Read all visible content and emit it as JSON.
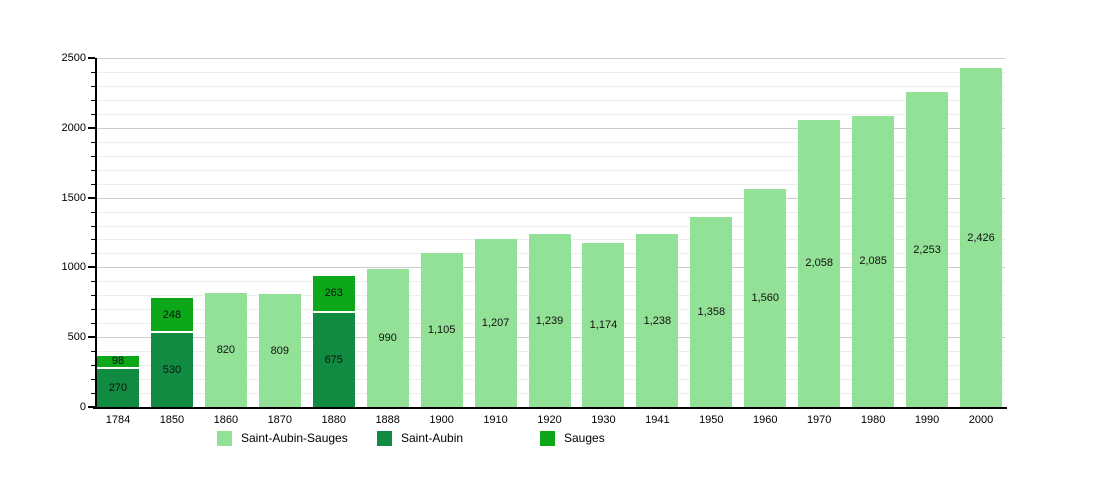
{
  "chart_data": {
    "type": "bar",
    "stacked": true,
    "title": "",
    "xlabel": "",
    "ylabel": "",
    "ylim": [
      0,
      2500
    ],
    "y_major_ticks": [
      0,
      500,
      1000,
      1500,
      2000,
      2500
    ],
    "y_minor_step": 100,
    "grid": true,
    "legend_position": "bottom",
    "series_colors": {
      "Saint-Aubin-Sauges": "#93E097",
      "Saint-Aubin": "#118A42",
      "Sauges": "#0CA81A"
    },
    "categories": [
      "1784",
      "1850",
      "1860",
      "1870",
      "1880",
      "1888",
      "1900",
      "1910",
      "1920",
      "1930",
      "1941",
      "1950",
      "1960",
      "1970",
      "1980",
      "1990",
      "2000"
    ],
    "bars": [
      {
        "category": "1784",
        "segments": [
          {
            "series": "Saint-Aubin",
            "value": 270,
            "label": "270"
          },
          {
            "series": "Sauges",
            "value": 98,
            "label": "98"
          }
        ]
      },
      {
        "category": "1850",
        "segments": [
          {
            "series": "Saint-Aubin",
            "value": 530,
            "label": "530"
          },
          {
            "series": "Sauges",
            "value": 248,
            "label": "248"
          }
        ]
      },
      {
        "category": "1860",
        "segments": [
          {
            "series": "Saint-Aubin-Sauges",
            "value": 820,
            "label": "820"
          }
        ]
      },
      {
        "category": "1870",
        "segments": [
          {
            "series": "Saint-Aubin-Sauges",
            "value": 809,
            "label": "809"
          }
        ]
      },
      {
        "category": "1880",
        "segments": [
          {
            "series": "Saint-Aubin",
            "value": 675,
            "label": "675"
          },
          {
            "series": "Sauges",
            "value": 263,
            "label": "263"
          }
        ]
      },
      {
        "category": "1888",
        "segments": [
          {
            "series": "Saint-Aubin-Sauges",
            "value": 990,
            "label": "990"
          }
        ]
      },
      {
        "category": "1900",
        "segments": [
          {
            "series": "Saint-Aubin-Sauges",
            "value": 1105,
            "label": "1,105"
          }
        ]
      },
      {
        "category": "1910",
        "segments": [
          {
            "series": "Saint-Aubin-Sauges",
            "value": 1207,
            "label": "1,207"
          }
        ]
      },
      {
        "category": "1920",
        "segments": [
          {
            "series": "Saint-Aubin-Sauges",
            "value": 1239,
            "label": "1,239"
          }
        ]
      },
      {
        "category": "1930",
        "segments": [
          {
            "series": "Saint-Aubin-Sauges",
            "value": 1174,
            "label": "1,174"
          }
        ]
      },
      {
        "category": "1941",
        "segments": [
          {
            "series": "Saint-Aubin-Sauges",
            "value": 1238,
            "label": "1,238"
          }
        ]
      },
      {
        "category": "1950",
        "segments": [
          {
            "series": "Saint-Aubin-Sauges",
            "value": 1358,
            "label": "1,358"
          }
        ]
      },
      {
        "category": "1960",
        "segments": [
          {
            "series": "Saint-Aubin-Sauges",
            "value": 1560,
            "label": "1,560"
          }
        ]
      },
      {
        "category": "1970",
        "segments": [
          {
            "series": "Saint-Aubin-Sauges",
            "value": 2058,
            "label": "2,058"
          }
        ]
      },
      {
        "category": "1980",
        "segments": [
          {
            "series": "Saint-Aubin-Sauges",
            "value": 2085,
            "label": "2,085"
          }
        ]
      },
      {
        "category": "1990",
        "segments": [
          {
            "series": "Saint-Aubin-Sauges",
            "value": 2253,
            "label": "2,253"
          }
        ]
      },
      {
        "category": "2000",
        "segments": [
          {
            "series": "Saint-Aubin-Sauges",
            "value": 2426,
            "label": "2,426"
          }
        ]
      }
    ],
    "legend": [
      {
        "label": "Saint-Aubin-Sauges",
        "color": "#93E097"
      },
      {
        "label": "Saint-Aubin",
        "color": "#118A42"
      },
      {
        "label": "Sauges",
        "color": "#0CA81A"
      }
    ]
  },
  "colors": {
    "background": "#ffffff",
    "grid_major": "#cccccc",
    "grid_minor": "#ededed",
    "axis": "#000000",
    "bar_label_text": "#111111",
    "segment_separator": "#ffffff"
  }
}
